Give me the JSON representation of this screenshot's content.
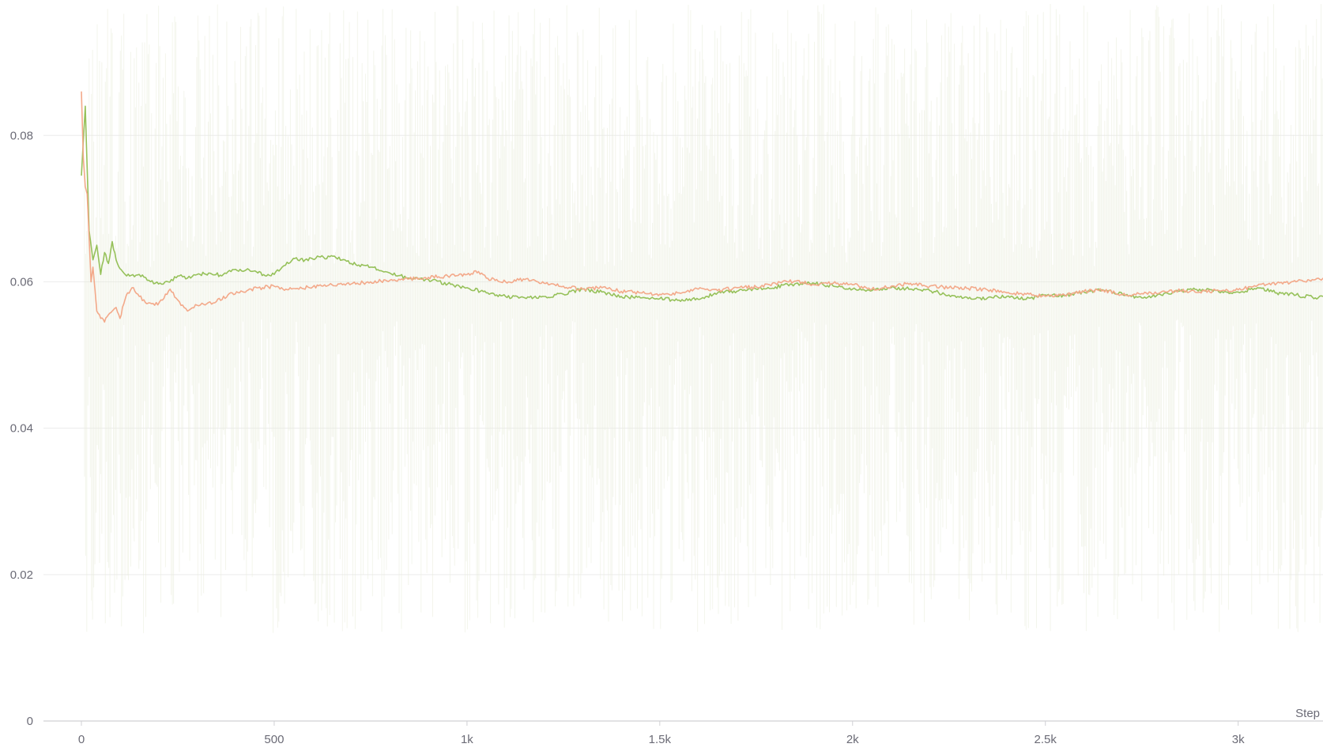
{
  "chart_data": {
    "type": "line",
    "title": "",
    "xlabel": "Step",
    "ylabel": "",
    "xlim": [
      0,
      3220
    ],
    "ylim": [
      0,
      0.0985
    ],
    "grid": true,
    "legend": "none",
    "x_ticks": [
      0,
      500,
      1000,
      1500,
      2000,
      2500,
      3000
    ],
    "x_tick_labels": [
      "0",
      "500",
      "1k",
      "1.5k",
      "2k",
      "2.5k",
      "3k"
    ],
    "y_ticks": [
      0,
      0.02,
      0.04,
      0.06,
      0.08
    ],
    "y_tick_labels": [
      "0",
      "0.02",
      "0.04",
      "0.06",
      "0.08"
    ],
    "raw_noise": {
      "color": "#e9eddc",
      "min": 0.012,
      "max": 0.098
    },
    "series": [
      {
        "color": "#96c15a",
        "x": [
          0,
          10,
          20,
          30,
          40,
          50,
          60,
          70,
          80,
          90,
          100,
          110,
          125,
          150,
          175,
          200,
          225,
          250,
          275,
          300,
          330,
          360,
          400,
          450,
          480,
          500,
          525,
          550,
          580,
          620,
          660,
          700,
          750,
          800,
          850,
          900,
          950,
          1000,
          1050,
          1100,
          1150,
          1200,
          1250,
          1300,
          1350,
          1400,
          1450,
          1500,
          1550,
          1600,
          1650,
          1700,
          1750,
          1800,
          1850,
          1900,
          1950,
          2000,
          2050,
          2100,
          2150,
          2200,
          2250,
          2300,
          2350,
          2400,
          2450,
          2500,
          2550,
          2600,
          2650,
          2700,
          2750,
          2800,
          2850,
          2900,
          2950,
          3000,
          3050,
          3100,
          3150,
          3200,
          3220
        ],
        "values": [
          0.0745,
          0.084,
          0.067,
          0.063,
          0.065,
          0.061,
          0.064,
          0.0625,
          0.0655,
          0.063,
          0.0618,
          0.0612,
          0.0608,
          0.061,
          0.0602,
          0.0597,
          0.06,
          0.0608,
          0.0605,
          0.061,
          0.0612,
          0.0609,
          0.0617,
          0.0615,
          0.0608,
          0.061,
          0.0622,
          0.0632,
          0.063,
          0.0634,
          0.0633,
          0.0625,
          0.062,
          0.0612,
          0.0605,
          0.0603,
          0.0597,
          0.0592,
          0.0585,
          0.058,
          0.0578,
          0.058,
          0.0583,
          0.059,
          0.0586,
          0.058,
          0.0578,
          0.0577,
          0.0575,
          0.0576,
          0.0585,
          0.0587,
          0.059,
          0.0593,
          0.0597,
          0.0598,
          0.0594,
          0.059,
          0.0588,
          0.0592,
          0.059,
          0.0588,
          0.0582,
          0.0577,
          0.0578,
          0.058,
          0.0576,
          0.0582,
          0.0581,
          0.0586,
          0.0589,
          0.0583,
          0.0578,
          0.0582,
          0.0588,
          0.059,
          0.0586,
          0.0586,
          0.0592,
          0.0585,
          0.0582,
          0.0578,
          0.058
        ]
      },
      {
        "color": "#f3a98a",
        "x": [
          0,
          5,
          10,
          15,
          20,
          25,
          30,
          35,
          40,
          50,
          60,
          70,
          80,
          90,
          100,
          110,
          120,
          135,
          150,
          170,
          190,
          210,
          230,
          250,
          275,
          300,
          325,
          350,
          380,
          410,
          440,
          470,
          500,
          530,
          560,
          600,
          650,
          700,
          750,
          800,
          850,
          900,
          950,
          1000,
          1030,
          1050,
          1100,
          1150,
          1200,
          1250,
          1300,
          1350,
          1400,
          1450,
          1500,
          1550,
          1600,
          1650,
          1700,
          1750,
          1800,
          1850,
          1900,
          1950,
          2000,
          2050,
          2100,
          2150,
          2200,
          2250,
          2300,
          2350,
          2400,
          2450,
          2500,
          2550,
          2600,
          2650,
          2700,
          2750,
          2800,
          2850,
          2900,
          2950,
          3000,
          3050,
          3100,
          3150,
          3200,
          3220
        ],
        "values": [
          0.086,
          0.077,
          0.073,
          0.072,
          0.066,
          0.06,
          0.062,
          0.059,
          0.056,
          0.055,
          0.0545,
          0.0555,
          0.056,
          0.0565,
          0.055,
          0.057,
          0.0585,
          0.0592,
          0.058,
          0.057,
          0.0568,
          0.0575,
          0.059,
          0.0575,
          0.056,
          0.0568,
          0.057,
          0.0573,
          0.0582,
          0.0585,
          0.059,
          0.0592,
          0.0594,
          0.059,
          0.0591,
          0.0593,
          0.0596,
          0.0597,
          0.06,
          0.0602,
          0.0604,
          0.0606,
          0.0608,
          0.061,
          0.0614,
          0.0605,
          0.06,
          0.0603,
          0.0598,
          0.0594,
          0.059,
          0.0592,
          0.0587,
          0.0585,
          0.0583,
          0.0585,
          0.059,
          0.0588,
          0.0592,
          0.0593,
          0.0598,
          0.0601,
          0.0596,
          0.0598,
          0.0596,
          0.059,
          0.0594,
          0.0598,
          0.0594,
          0.0592,
          0.0591,
          0.0589,
          0.0585,
          0.0583,
          0.058,
          0.0582,
          0.0587,
          0.0589,
          0.0582,
          0.0584,
          0.0586,
          0.0588,
          0.0586,
          0.0588,
          0.0589,
          0.0595,
          0.0598,
          0.06,
          0.0603,
          0.0605
        ]
      }
    ]
  }
}
